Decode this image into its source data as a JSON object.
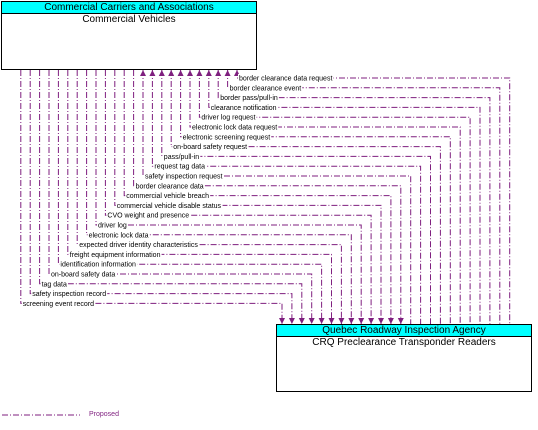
{
  "top_entity": {
    "group": "Commercial Carriers and Associations",
    "name": "Commercial Vehicles"
  },
  "bottom_entity": {
    "group": "Quebec Roadway Inspection Agency",
    "name": "CRQ Preclearance Transponder Readers"
  },
  "flows": [
    {
      "label": "border clearance data request",
      "direction": "up"
    },
    {
      "label": "border clearance event",
      "direction": "up"
    },
    {
      "label": "border pass/pull-in",
      "direction": "up"
    },
    {
      "label": "clearance notification",
      "direction": "up"
    },
    {
      "label": "driver log request",
      "direction": "up"
    },
    {
      "label": "electronic lock data request",
      "direction": "up"
    },
    {
      "label": "electronic screening request",
      "direction": "up"
    },
    {
      "label": "on-board safety request",
      "direction": "up"
    },
    {
      "label": "pass/pull-in",
      "direction": "up"
    },
    {
      "label": "request tag data",
      "direction": "up"
    },
    {
      "label": "safety inspection request",
      "direction": "up"
    },
    {
      "label": "border clearance data",
      "direction": "down"
    },
    {
      "label": "commercial vehicle breach",
      "direction": "down"
    },
    {
      "label": "commercial vehicle disable status",
      "direction": "down"
    },
    {
      "label": "CVO weight and presence",
      "direction": "down"
    },
    {
      "label": "driver log",
      "direction": "down"
    },
    {
      "label": "electronic lock data",
      "direction": "down"
    },
    {
      "label": "expected driver identity characteristics",
      "direction": "down"
    },
    {
      "label": "freight equipment information",
      "direction": "down"
    },
    {
      "label": "identification information",
      "direction": "down"
    },
    {
      "label": "on-board safety data",
      "direction": "down"
    },
    {
      "label": "tag data",
      "direction": "down"
    },
    {
      "label": "safety inspection record",
      "direction": "down"
    },
    {
      "label": "screening event record",
      "direction": "down"
    }
  ],
  "legend": {
    "label": "Proposed",
    "color": "#7f1f7f"
  },
  "colors": {
    "header": "#00ffff",
    "flow": "#7f1f7f"
  }
}
